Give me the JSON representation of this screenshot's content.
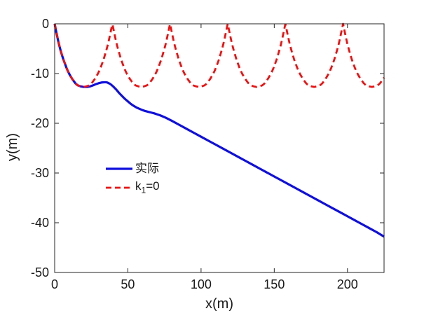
{
  "figure": {
    "background": "#ffffff",
    "axis_color": "#262626",
    "text_color": "#1a1a1a"
  },
  "chart_data": {
    "type": "line",
    "title": "",
    "xlabel": "x(m)",
    "ylabel": "y(m)",
    "xlim": [
      0,
      225
    ],
    "ylim": [
      -50,
      0
    ],
    "xticks": [
      0,
      50,
      100,
      150,
      200
    ],
    "yticks": [
      0,
      -10,
      -20,
      -30,
      -40,
      -50
    ],
    "grid": false,
    "box": true,
    "legend": {
      "position": "inside-center-left",
      "border": false,
      "entries": [
        {
          "label": "实际",
          "color": "#0f0fdd",
          "style": "solid"
        },
        {
          "label": "k_1=0",
          "label_base": "k",
          "label_sub": "1",
          "label_rest": "=0",
          "color": "#ee1111",
          "style": "dashed"
        }
      ]
    },
    "series": [
      {
        "name": "实际",
        "style": "solid",
        "color": "#0f0fdd",
        "line_width": 3.2,
        "points": [
          [
            0,
            0
          ],
          [
            1,
            -1.5
          ],
          [
            2,
            -2.9
          ],
          [
            3,
            -4.2
          ],
          [
            4,
            -5.3
          ],
          [
            5,
            -6.3
          ],
          [
            6,
            -7.2
          ],
          [
            7,
            -8.0
          ],
          [
            8,
            -8.8
          ],
          [
            9,
            -9.5
          ],
          [
            10,
            -10.1
          ],
          [
            11,
            -10.6
          ],
          [
            12,
            -11.1
          ],
          [
            13,
            -11.5
          ],
          [
            14,
            -11.9
          ],
          [
            15,
            -12.2
          ],
          [
            16,
            -12.4
          ],
          [
            17,
            -12.5
          ],
          [
            18,
            -12.6
          ],
          [
            19,
            -12.65
          ],
          [
            20,
            -12.7
          ],
          [
            22,
            -12.7
          ],
          [
            24,
            -12.6
          ],
          [
            26,
            -12.4
          ],
          [
            28,
            -12.15
          ],
          [
            30,
            -11.95
          ],
          [
            32,
            -11.8
          ],
          [
            34,
            -11.75
          ],
          [
            35,
            -11.75
          ],
          [
            36,
            -11.8
          ],
          [
            38,
            -12.1
          ],
          [
            40,
            -12.6
          ],
          [
            42,
            -13.2
          ],
          [
            44,
            -13.9
          ],
          [
            46,
            -14.5
          ],
          [
            48,
            -15.1
          ],
          [
            50,
            -15.6
          ],
          [
            52,
            -16.1
          ],
          [
            54,
            -16.5
          ],
          [
            56,
            -16.85
          ],
          [
            58,
            -17.1
          ],
          [
            60,
            -17.35
          ],
          [
            62,
            -17.55
          ],
          [
            64,
            -17.7
          ],
          [
            66,
            -17.85
          ],
          [
            68,
            -18.0
          ],
          [
            70,
            -18.2
          ],
          [
            72,
            -18.4
          ],
          [
            74,
            -18.65
          ],
          [
            76,
            -18.9
          ],
          [
            78,
            -19.2
          ],
          [
            80,
            -19.5
          ],
          [
            85,
            -20.3
          ],
          [
            90,
            -21.1
          ],
          [
            95,
            -21.9
          ],
          [
            100,
            -22.7
          ],
          [
            105,
            -23.5
          ],
          [
            110,
            -24.3
          ],
          [
            115,
            -25.1
          ],
          [
            120,
            -25.9
          ],
          [
            125,
            -26.7
          ],
          [
            130,
            -27.5
          ],
          [
            135,
            -28.3
          ],
          [
            140,
            -29.1
          ],
          [
            145,
            -29.9
          ],
          [
            150,
            -30.7
          ],
          [
            155,
            -31.5
          ],
          [
            160,
            -32.3
          ],
          [
            165,
            -33.1
          ],
          [
            170,
            -33.9
          ],
          [
            175,
            -34.7
          ],
          [
            180,
            -35.5
          ],
          [
            185,
            -36.3
          ],
          [
            190,
            -37.1
          ],
          [
            195,
            -37.9
          ],
          [
            200,
            -38.7
          ],
          [
            205,
            -39.5
          ],
          [
            210,
            -40.3
          ],
          [
            215,
            -41.1
          ],
          [
            220,
            -41.9
          ],
          [
            225,
            -42.8
          ]
        ]
      },
      {
        "name": "k_1=0",
        "style": "dashed",
        "color": "#ee1111",
        "line_width": 2.8,
        "dash": [
          8,
          5
        ],
        "generator": {
          "kind": "periodic_cusp",
          "period": 39.4,
          "x_start": 0,
          "x_end": 225,
          "sample_step": 0.25,
          "cusp_positions": [
            0,
            39.4,
            78.8,
            118.2,
            157.6,
            197.0
          ],
          "trough_depth": -12.7,
          "half_profile": [
            [
              0,
              0
            ],
            [
              1,
              -1.4
            ],
            [
              2,
              -2.8
            ],
            [
              3,
              -4.1
            ],
            [
              4,
              -5.2
            ],
            [
              5,
              -6.2
            ],
            [
              6,
              -7.2
            ],
            [
              7,
              -8.0
            ],
            [
              8,
              -8.8
            ],
            [
              9,
              -9.5
            ],
            [
              10,
              -10.1
            ],
            [
              11,
              -10.6
            ],
            [
              12,
              -11.1
            ],
            [
              13,
              -11.5
            ],
            [
              14,
              -11.9
            ],
            [
              15,
              -12.2
            ],
            [
              16,
              -12.4
            ],
            [
              17,
              -12.5
            ],
            [
              18,
              -12.6
            ],
            [
              19,
              -12.65
            ],
            [
              19.7,
              -12.7
            ]
          ]
        }
      }
    ]
  }
}
